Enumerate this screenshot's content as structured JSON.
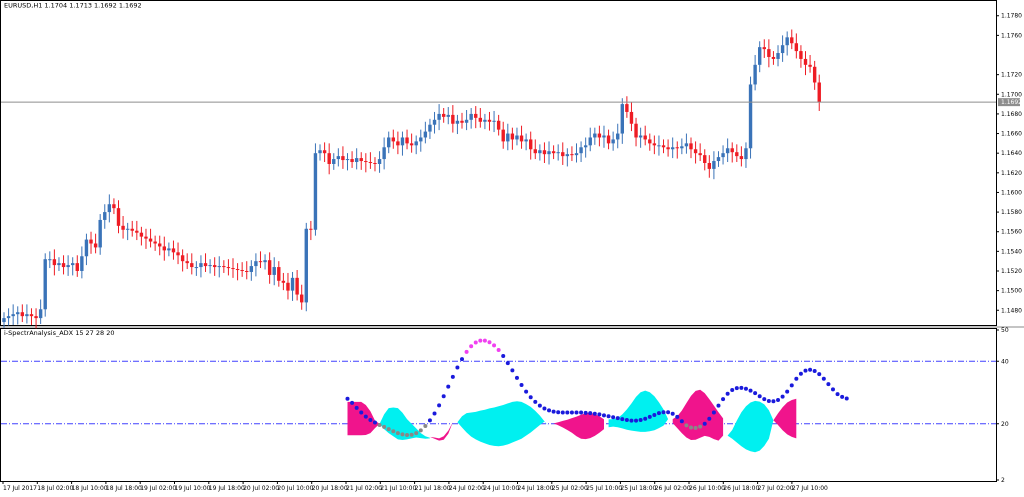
{
  "colors": {
    "background": "#ffffff",
    "bull_candle": "#3a73b8",
    "bear_candle": "#ee1c24",
    "price_line": "#8e8e8e",
    "price_marker_bg": "#8e8e8e",
    "level_line": "#4040ff",
    "cyan_fill": "#00f0f0",
    "pink_fill": "#f0148c",
    "dot_blue": "#1a1adc",
    "dot_magenta": "#f040f0",
    "dot_gray": "#888888"
  },
  "main_panel": {
    "title": "EURUSD,H1  1.1704 1.1713 1.1692 1.1692",
    "current_price_label": "1.1692",
    "price_axis_ticks": [
      "1.1780",
      "1.1760",
      "1.1720",
      "1.1700",
      "1.1680",
      "1.1660",
      "1.1640",
      "1.1620",
      "1.1600",
      "1.1580",
      "1.1560",
      "1.1540",
      "1.1520",
      "1.1500",
      "1.1480"
    ]
  },
  "indicator_panel": {
    "title": "i-SpectrAnalysis_ADX 15 27 28 20",
    "axis_ticks": [
      "50",
      "40",
      "20",
      "2"
    ],
    "levels": [
      40,
      20
    ]
  },
  "time_axis": [
    "17 Jul 2017",
    "18 Jul 02:00",
    "18 Jul 10:00",
    "18 Jul 18:00",
    "19 Jul 02:00",
    "19 Jul 10:00",
    "19 Jul 18:00",
    "20 Jul 02:00",
    "20 Jul 10:00",
    "20 Jul 18:00",
    "21 Jul 02:00",
    "21 Jul 10:00",
    "21 Jul 18:00",
    "24 Jul 02:00",
    "24 Jul 10:00",
    "24 Jul 18:00",
    "25 Jul 02:00",
    "25 Jul 10:00",
    "25 Jul 18:00",
    "26 Jul 02:00",
    "26 Jul 10:00",
    "26 Jul 18:00",
    "27 Jul 02:00",
    "27 Jul 10:00"
  ],
  "chart_data": {
    "type": "candlestick",
    "symbol": "EURUSD",
    "timeframe": "H1",
    "y_range": [
      1.1466,
      1.1794
    ],
    "current_price": 1.1692,
    "closes": [
      1.1472,
      1.1474,
      1.1476,
      1.1478,
      1.1474,
      1.1476,
      1.1474,
      1.1472,
      1.1481,
      1.1532,
      1.1532,
      1.1526,
      1.1528,
      1.1524,
      1.1526,
      1.1528,
      1.152,
      1.1535,
      1.1552,
      1.1548,
      1.1544,
      1.1572,
      1.158,
      1.1588,
      1.1584,
      1.1566,
      1.1562,
      1.1563,
      1.1561,
      1.1559,
      1.1555,
      1.1553,
      1.155,
      1.1548,
      1.1545,
      1.1541,
      1.1543,
      1.1539,
      1.1536,
      1.153,
      1.1528,
      1.1524,
      1.1524,
      1.1528,
      1.1525,
      1.1526,
      1.1524,
      1.1525,
      1.1524,
      1.1523,
      1.1522,
      1.1521,
      1.152,
      1.1519,
      1.1525,
      1.153,
      1.1529,
      1.1531,
      1.1516,
      1.1524,
      1.151,
      1.1508,
      1.15,
      1.1513,
      1.1496,
      1.1488,
      1.1563,
      1.1562,
      1.164,
      1.1643,
      1.164,
      1.1629,
      1.1634,
      1.1637,
      1.1633,
      1.1634,
      1.1631,
      1.1635,
      1.1632,
      1.1631,
      1.163,
      1.1629,
      1.1634,
      1.1646,
      1.1656,
      1.1652,
      1.1648,
      1.1656,
      1.165,
      1.1648,
      1.1652,
      1.1656,
      1.1662,
      1.1669,
      1.1674,
      1.168,
      1.1677,
      1.1679,
      1.167,
      1.1673,
      1.1671,
      1.1674,
      1.168,
      1.1676,
      1.1672,
      1.1674,
      1.1672,
      1.1673,
      1.1664,
      1.1652,
      1.166,
      1.1654,
      1.1658,
      1.1652,
      1.1654,
      1.1644,
      1.164,
      1.1643,
      1.1639,
      1.1642,
      1.164,
      1.1641,
      1.1637,
      1.1639,
      1.1638,
      1.164,
      1.1646,
      1.1648,
      1.1656,
      1.166,
      1.1656,
      1.1658,
      1.165,
      1.1654,
      1.166,
      1.169,
      1.1682,
      1.167,
      1.1656,
      1.1658,
      1.1654,
      1.165,
      1.1648,
      1.1648,
      1.1646,
      1.1644,
      1.1646,
      1.1645,
      1.1647,
      1.165,
      1.1644,
      1.164,
      1.1638,
      1.163,
      1.1624,
      1.1632,
      1.1636,
      1.164,
      1.1645,
      1.1641,
      1.1637,
      1.1634,
      1.1645,
      1.171,
      1.173,
      1.1748,
      1.1746,
      1.1738,
      1.1736,
      1.1742,
      1.175,
      1.1758,
      1.1752,
      1.1744,
      1.1736,
      1.173,
      1.1728,
      1.1712,
      1.1692
    ]
  },
  "indicator_data": {
    "type": "area+dots",
    "y_range": [
      2,
      50
    ],
    "dots_start_index": 75,
    "dots": [
      28.0,
      26.7,
      25.1,
      23.6,
      22.3,
      21.2,
      20.4,
      19.6,
      19.0,
      18.3,
      17.6,
      17.0,
      16.6,
      16.4,
      16.5,
      17.0,
      17.9,
      19.3,
      21.1,
      23.3,
      25.9,
      28.8,
      31.9,
      35.0,
      38.0,
      40.7,
      43.0,
      44.8,
      46.0,
      46.6,
      46.6,
      46.1,
      45.1,
      43.6,
      41.7,
      39.4,
      37.1,
      34.7,
      32.4,
      30.3,
      28.5,
      27.0,
      25.8,
      24.9,
      24.3,
      23.9,
      23.7,
      23.6,
      23.6,
      23.6,
      23.6,
      23.6,
      23.5,
      23.4,
      23.2,
      23.0,
      22.7,
      22.4,
      22.1,
      21.8,
      21.5,
      21.2,
      21.0,
      21.0,
      21.2,
      21.6,
      22.2,
      22.8,
      23.4,
      23.7,
      23.7,
      23.2,
      22.2,
      20.8,
      19.5,
      18.8,
      18.7,
      19.1,
      20.0,
      21.6,
      23.6,
      25.8,
      27.9,
      29.6,
      30.8,
      31.4,
      31.5,
      31.2,
      30.6,
      29.8,
      28.8,
      27.9,
      27.3,
      27.2,
      27.6,
      28.7,
      30.3,
      32.3,
      34.4,
      36.0,
      37.0,
      37.3,
      36.9,
      35.9,
      34.4,
      32.7,
      31.0,
      29.5,
      28.6,
      28.1
    ],
    "bands": [
      {
        "color": "pink",
        "start": 75,
        "top": [
          27,
          27,
          27,
          27,
          26,
          24,
          21,
          20
        ],
        "bottom": [
          16.3,
          16.3,
          16.3,
          16.3,
          16.4,
          17,
          18.6,
          20
        ]
      },
      {
        "color": "cyan",
        "start": 82,
        "top": [
          20,
          23,
          25,
          25.2,
          25,
          23.5,
          21.5,
          20,
          18.5,
          17,
          16,
          15.5
        ],
        "bottom": [
          20,
          18.3,
          17,
          16,
          15,
          14.8,
          15,
          15.3,
          15.6,
          15.4,
          15.2,
          15.3
        ]
      },
      {
        "color": "pink",
        "start": 93,
        "top": [
          15.8,
          15.6,
          15.3,
          16,
          17.8,
          20.5
        ],
        "bottom": [
          15.8,
          15.2,
          14.6,
          14.9,
          16.8,
          20.5
        ]
      },
      {
        "color": "cyan",
        "start": 99,
        "top": [
          20.5,
          22.4,
          23.4,
          23.6,
          23.8,
          24.2,
          24.5,
          24.9,
          25.2,
          25.6,
          26,
          26.5,
          27,
          27.2,
          27,
          26.3,
          25.4,
          24.1,
          22.6,
          20.8,
          19.2
        ],
        "bottom": [
          20.5,
          18.8,
          17.2,
          15.9,
          15,
          14.3,
          13.7,
          13.2,
          12.9,
          12.8,
          13,
          13.4,
          14,
          14.6,
          15.2,
          16.2,
          17.2,
          18.4,
          19.6,
          20.7,
          19.2
        ]
      },
      {
        "color": "pink",
        "start": 120,
        "top": [
          20.1,
          20.5,
          20.9,
          21.3,
          21.8,
          22.3,
          22.9,
          23.4,
          23.5,
          23.1,
          22.4,
          21.4
        ],
        "bottom": [
          20.1,
          19.5,
          18.8,
          18,
          17.1,
          16,
          15.2,
          15.1,
          15.4,
          16.1,
          17.1,
          18.3
        ]
      },
      {
        "color": "cyan",
        "start": 132,
        "top": [
          21.4,
          21.5,
          21.8,
          23,
          24.6,
          26.5,
          28.6,
          30.1,
          30.6,
          30.1,
          28.8,
          26.9,
          24.6,
          21.5
        ],
        "bottom": [
          18.9,
          19.1,
          18.9,
          18.5,
          18.1,
          17.8,
          17.6,
          17.4,
          17.4,
          17.6,
          17.9,
          18.6,
          19.4,
          21.5
        ]
      },
      {
        "color": "pink",
        "start": 146,
        "top": [
          21.5,
          22.4,
          24.2,
          26.6,
          28.9,
          30.5,
          30.9,
          29.8,
          27.9,
          25.8,
          23.7,
          21.7
        ],
        "bottom": [
          20.2,
          18.6,
          17.0,
          15.6,
          14.8,
          14.9,
          15.5,
          16.1,
          15.8,
          15.1,
          14.6,
          16.2
        ]
      },
      {
        "color": "cyan",
        "start": 158,
        "top": [
          16.2,
          18.0,
          21.0,
          23.7,
          25.6,
          26.8,
          27.3,
          27.1,
          26.2,
          24.3,
          21.1
        ],
        "bottom": [
          16.2,
          15.2,
          14.0,
          12.8,
          11.8,
          11.2,
          10.9,
          11.4,
          12.9,
          15.2,
          21.1
        ]
      },
      {
        "color": "pink",
        "start": 168,
        "top": [
          21.1,
          23.3,
          25.3,
          26.8,
          27.6,
          28.0
        ],
        "bottom": [
          21.1,
          19.6,
          17.9,
          16.6,
          15.8,
          15.3
        ]
      }
    ]
  }
}
